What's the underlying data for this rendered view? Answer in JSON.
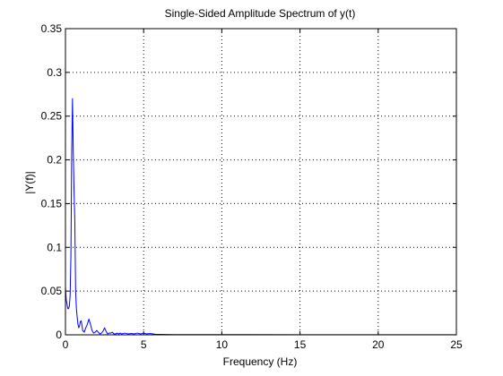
{
  "chart_data": {
    "type": "line",
    "title": "Single-Sided Amplitude Spectrum of y(t)",
    "xlabel": "Frequency (Hz)",
    "ylabel": "|Y(f)|",
    "xlim": [
      0,
      25
    ],
    "ylim": [
      0,
      0.35
    ],
    "xticks": [
      "0",
      "5",
      "10",
      "15",
      "20",
      "25"
    ],
    "yticks": [
      "0",
      "0.05",
      "0.1",
      "0.15",
      "0.2",
      "0.25",
      "0.3",
      "0.35"
    ],
    "grid": true,
    "grid_style": "dotted",
    "line_color": "#0000ff",
    "series": [
      {
        "x": [
          0,
          0.05,
          0.1,
          0.15,
          0.2,
          0.25,
          0.3,
          0.35,
          0.4,
          0.45,
          0.5,
          0.55,
          0.6,
          0.65,
          0.7,
          0.75,
          0.8,
          0.85,
          0.9,
          0.95,
          1.0,
          1.05,
          1.1,
          1.2,
          1.3,
          1.4,
          1.5,
          1.6,
          1.7,
          1.8,
          1.9,
          2.0,
          2.1,
          2.2,
          2.3,
          2.4,
          2.5,
          2.6,
          2.7,
          2.8,
          2.9,
          3.0,
          3.1,
          3.2,
          3.3,
          3.4,
          3.5,
          3.6,
          3.8,
          4.0,
          4.2,
          4.4,
          4.6,
          4.8,
          5.0,
          5.2,
          5.4,
          5.6,
          5.8,
          6.0,
          7.0,
          8.0,
          10.0,
          12.0,
          15.0,
          20.0,
          25.0
        ],
        "y": [
          0.055,
          0.04,
          0.035,
          0.03,
          0.03,
          0.033,
          0.045,
          0.09,
          0.21,
          0.27,
          0.21,
          0.165,
          0.13,
          0.05,
          0.03,
          0.02,
          0.012,
          0.008,
          0.01,
          0.015,
          0.016,
          0.012,
          0.005,
          0.003,
          0.008,
          0.012,
          0.018,
          0.012,
          0.005,
          0.002,
          0.003,
          0.005,
          0.003,
          0.001,
          0.002,
          0.004,
          0.008,
          0.004,
          0.001,
          0.002,
          0.002,
          0.003,
          0.001,
          0.001,
          0.002,
          0.001,
          0.002,
          0.001,
          0.002,
          0.001,
          0.0015,
          0.001,
          0.002,
          0.001,
          0.002,
          0.001,
          0.0015,
          0.001,
          0.0005,
          0.0005,
          0.0003,
          0.0003,
          0.0002,
          0.0002,
          0.0001,
          0.0001,
          0.0001
        ]
      }
    ]
  }
}
